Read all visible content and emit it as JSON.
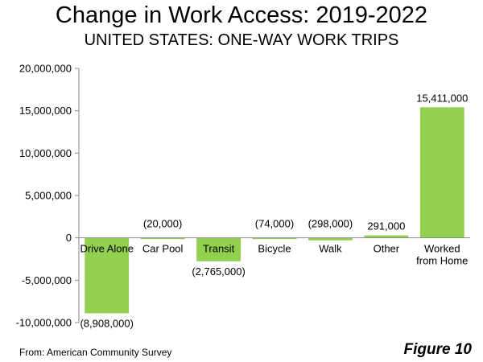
{
  "chart_data": {
    "type": "bar",
    "title": "Change in Work Access: 2019-2022",
    "subtitle": "UNITED STATES: ONE-WAY WORK TRIPS",
    "categories": [
      "Drive Alone",
      "Car Pool",
      "Transit",
      "Bicycle",
      "Walk",
      "Other",
      "Worked from Home"
    ],
    "values": [
      -8908000,
      -20000,
      -2765000,
      -74000,
      -298000,
      291000,
      15411000
    ],
    "data_labels": [
      "(8,908,000)",
      "(20,000)",
      "(2,765,000)",
      "(74,000)",
      "(298,000)",
      "291,000",
      "15,411,000"
    ],
    "ylim": [
      -10000000,
      20000000
    ],
    "yticks": [
      -10000000,
      -5000000,
      0,
      5000000,
      10000000,
      15000000,
      20000000
    ],
    "ytick_labels": [
      "-10,000,000",
      "-5,000,000",
      "0",
      "5,000,000",
      "10,000,000",
      "15,000,000",
      "20,000,000"
    ],
    "xlabel": "",
    "ylabel": "",
    "grid": false,
    "legend": "none",
    "bar_color": "#92d050"
  },
  "footer": {
    "source": "From: American Community Survey",
    "figure": "Figure 10"
  }
}
